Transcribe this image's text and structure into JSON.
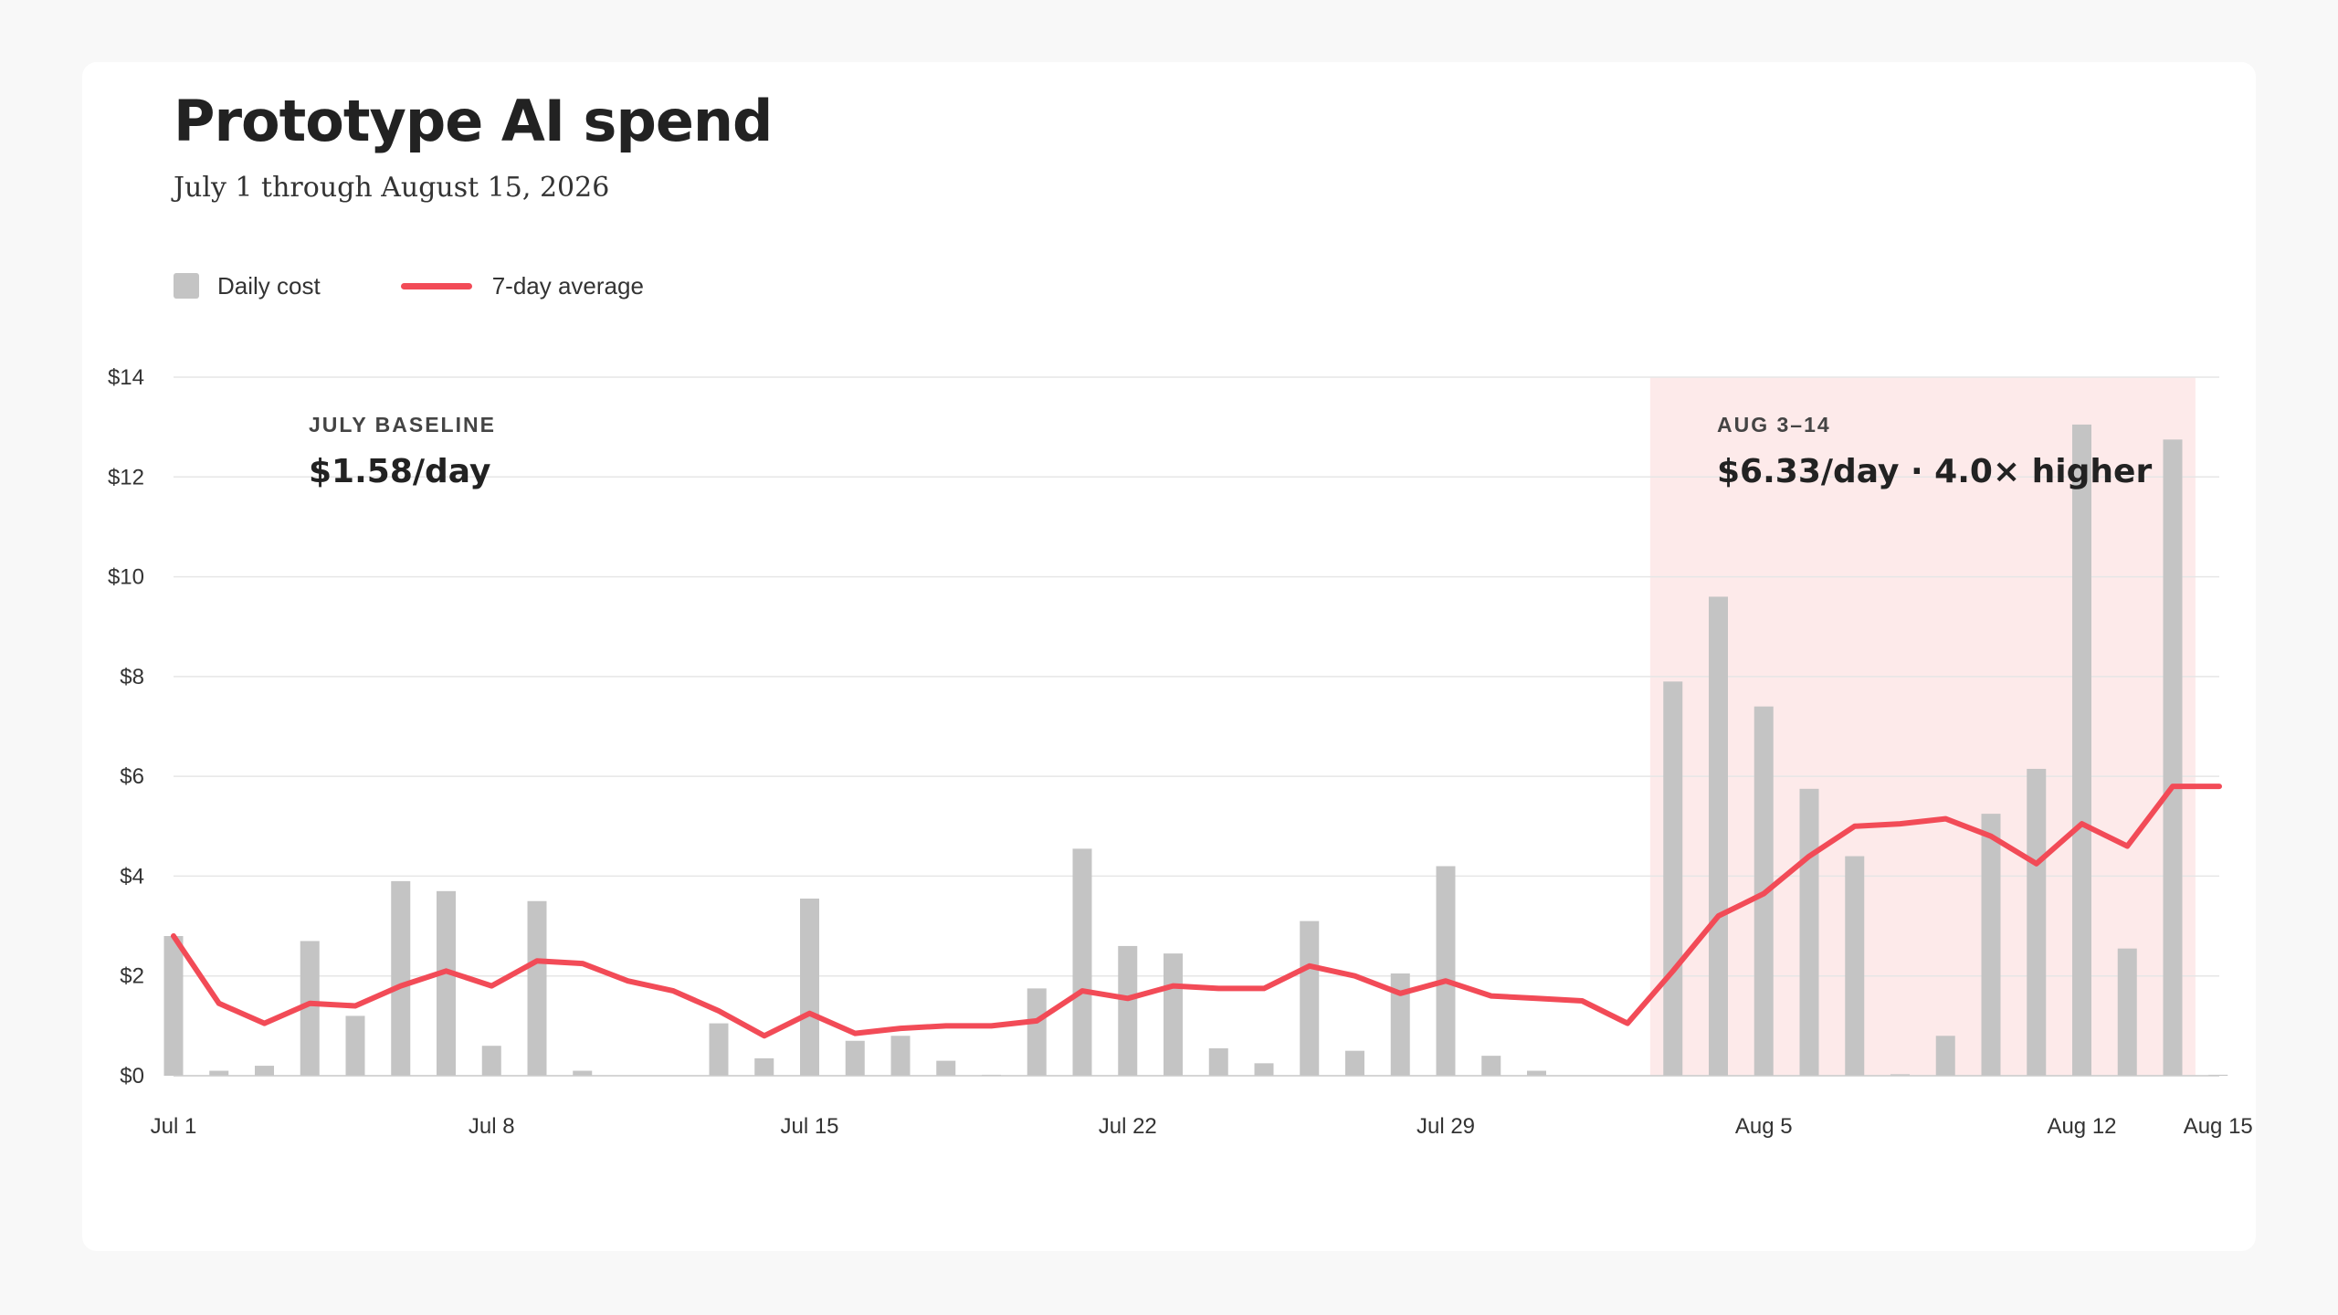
{
  "header": {
    "title": "Prototype AI spend",
    "subtitle": "July 1 through August 15, 2026"
  },
  "legend": {
    "bar_label": "Daily cost",
    "line_label": "7-day average"
  },
  "colors": {
    "bar": "#c4c4c4",
    "line": "#f24b57",
    "highlight": "#fdeaea",
    "grid": "#e6e6e6"
  },
  "chart_data": {
    "type": "bar",
    "x_start_label": "Jul 1",
    "ylim": [
      0,
      14
    ],
    "yticks": [
      0,
      2,
      4,
      6,
      8,
      10,
      12,
      14
    ],
    "ytick_labels": [
      "$0",
      "$2",
      "$4",
      "$6",
      "$8",
      "$10",
      "$12",
      "$14"
    ],
    "xtick_labels": [
      "Jul 1",
      "Jul 8",
      "Jul 15",
      "Jul 22",
      "Jul 29",
      "Aug 5",
      "Aug 12",
      "Aug 15"
    ],
    "xtick_days": [
      1,
      8,
      15,
      22,
      29,
      36,
      43,
      46
    ],
    "series": [
      {
        "name": "Daily cost",
        "type": "bar",
        "values": [
          2.8,
          0.1,
          0.2,
          2.7,
          1.2,
          3.9,
          3.7,
          0.6,
          3.5,
          0.1,
          0,
          0,
          1.05,
          0.35,
          3.55,
          0.7,
          0.8,
          0.3,
          0.02,
          1.75,
          4.55,
          2.6,
          2.45,
          0.55,
          0.25,
          3.1,
          0.5,
          2.05,
          4.2,
          0.4,
          0.1,
          0,
          0,
          7.9,
          9.6,
          7.4,
          5.75,
          4.4,
          0.03,
          0.8,
          5.25,
          6.15,
          13.05,
          2.55,
          12.75,
          0.02
        ]
      },
      {
        "name": "7-day average",
        "type": "line",
        "values": [
          2.8,
          1.45,
          1.05,
          1.45,
          1.4,
          1.8,
          2.1,
          1.8,
          2.3,
          2.25,
          1.9,
          1.7,
          1.3,
          0.8,
          1.25,
          0.85,
          0.95,
          1.0,
          1.0,
          1.1,
          1.7,
          1.55,
          1.8,
          1.75,
          1.75,
          2.2,
          2.0,
          1.65,
          1.9,
          1.6,
          1.55,
          1.5,
          1.05,
          2.1,
          3.2,
          3.65,
          4.4,
          5.0,
          5.05,
          5.15,
          4.8,
          4.25,
          5.05,
          4.6,
          5.8,
          5.8
        ]
      }
    ],
    "highlight": {
      "start_day": 34,
      "end_day": 45
    },
    "annotations": [
      {
        "label": "JULY BASELINE",
        "value": "$1.58/day"
      },
      {
        "label": "AUG 3–14",
        "value": "$6.33/day · 4.0× higher"
      }
    ]
  }
}
